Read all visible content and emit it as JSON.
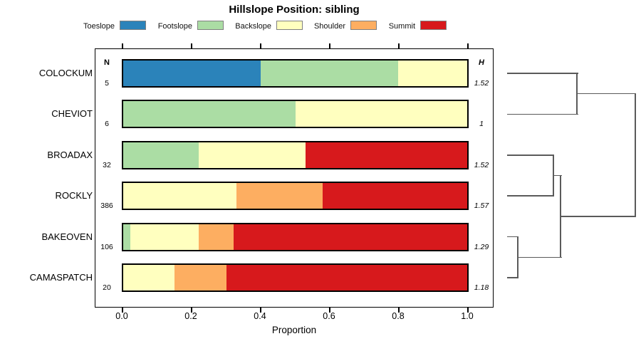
{
  "title": "Hillslope Position: sibling",
  "axis": {
    "xlabel": "Proportion",
    "tick_labels": [
      "0.0",
      "0.2",
      "0.4",
      "0.6",
      "0.8",
      "1.0"
    ],
    "tick_values": [
      0,
      0.2,
      0.4,
      0.6,
      0.8,
      1.0
    ]
  },
  "columns": {
    "n_header": "N",
    "h_header": "H"
  },
  "legend": {
    "items": [
      {
        "label": "Toeslope",
        "color": "#2B83BA"
      },
      {
        "label": "Footslope",
        "color": "#ABDDA4"
      },
      {
        "label": "Backslope",
        "color": "#FFFFBF"
      },
      {
        "label": "Shoulder",
        "color": "#FDAE61"
      },
      {
        "label": "Summit",
        "color": "#D7191C"
      }
    ]
  },
  "chart_data": {
    "type": "bar",
    "stacked": true,
    "orientation": "horizontal",
    "title": "Hillslope Position: sibling",
    "xlabel": "Proportion",
    "xlim": [
      0,
      1
    ],
    "grid": false,
    "legend_position": "top",
    "categories": [
      "COLOCKUM",
      "CHEVIOT",
      "BROADAX",
      "ROCKLY",
      "BAKEOVEN",
      "CAMASPATCH"
    ],
    "n_values": [
      "5",
      "6",
      "32",
      "386",
      "106",
      "20"
    ],
    "h_values": [
      "1.52",
      "1",
      "1.52",
      "1.57",
      "1.29",
      "1.18"
    ],
    "series": [
      {
        "name": "Toeslope",
        "color": "#2B83BA",
        "values": [
          0.4,
          0,
          0,
          0,
          0,
          0
        ]
      },
      {
        "name": "Footslope",
        "color": "#ABDDA4",
        "values": [
          0.4,
          0.5,
          0.22,
          0,
          0.02,
          0
        ]
      },
      {
        "name": "Backslope",
        "color": "#FFFFBF",
        "values": [
          0.2,
          0.5,
          0.31,
          0.33,
          0.2,
          0.15
        ]
      },
      {
        "name": "Shoulder",
        "color": "#FDAE61",
        "values": [
          0,
          0,
          0,
          0.25,
          0.1,
          0.15
        ]
      },
      {
        "name": "Summit",
        "color": "#D7191C",
        "values": [
          0,
          0,
          0.47,
          0.42,
          0.68,
          0.7
        ]
      }
    ],
    "dendrogram": {
      "leaves": [
        "COLOCKUM",
        "CHEVIOT",
        "BROADAX",
        "ROCKLY",
        "BAKEOVEN",
        "CAMASPATCH"
      ],
      "merges": [
        {
          "id": "A",
          "children": [
            "COLOCKUM",
            "CHEVIOT"
          ],
          "height": 0.545
        },
        {
          "id": "B",
          "children": [
            "BROADAX",
            "ROCKLY"
          ],
          "height": 0.361
        },
        {
          "id": "C",
          "children": [
            "BAKEOVEN",
            "CAMASPATCH"
          ],
          "height": 0.083
        },
        {
          "id": "D",
          "children": [
            "B",
            "C"
          ],
          "height": 0.417
        },
        {
          "id": "root",
          "children": [
            "A",
            "D"
          ],
          "height": 1.0
        }
      ]
    }
  }
}
